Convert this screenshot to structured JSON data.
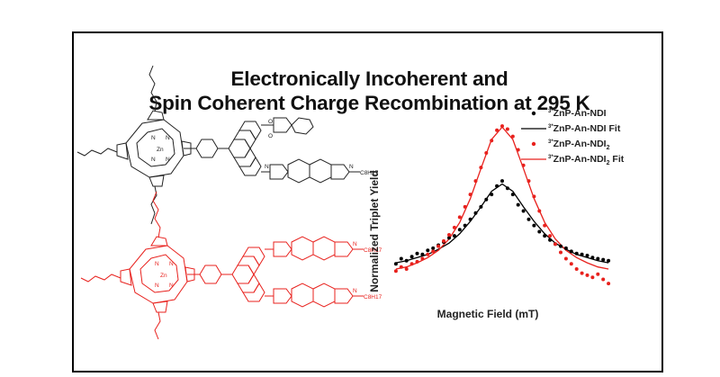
{
  "title": {
    "line1": "Electronically Incoherent and",
    "line2": "Spin Coherent Charge Recombination at 295 K"
  },
  "molecule_labels": {
    "n": "N",
    "zn": "Zn",
    "o": "O",
    "c8h17": "C8H17"
  },
  "colors": {
    "black_series": "#000000",
    "red_series": "#e8211d"
  },
  "chart_data": {
    "type": "scatter",
    "xlabel": "Magnetic Field (mT)",
    "ylabel": "Normalized Triplet Yield",
    "grid": false,
    "legend_position": "top-right",
    "series": [
      {
        "name": "3*ZnP-An-NDI",
        "label_sup": "3*",
        "label_main": "ZnP-An-NDI",
        "label_sub": "",
        "kind": "points",
        "color": "#000000",
        "x": [
          -1.0,
          -0.95,
          -0.9,
          -0.85,
          -0.8,
          -0.75,
          -0.7,
          -0.65,
          -0.6,
          -0.55,
          -0.5,
          -0.45,
          -0.4,
          -0.35,
          -0.3,
          -0.25,
          -0.2,
          -0.15,
          -0.1,
          -0.05,
          0.0,
          0.05,
          0.1,
          0.15,
          0.2,
          0.25,
          0.3,
          0.35,
          0.4,
          0.45,
          0.5,
          0.55,
          0.6,
          0.65,
          0.7,
          0.75,
          0.8,
          0.85,
          0.9,
          0.95,
          1.0
        ],
        "y": [
          0.15,
          0.2,
          0.18,
          0.22,
          0.25,
          0.24,
          0.28,
          0.3,
          0.33,
          0.36,
          0.4,
          0.42,
          0.48,
          0.52,
          0.58,
          0.64,
          0.7,
          0.77,
          0.82,
          0.9,
          0.95,
          0.88,
          0.82,
          0.72,
          0.66,
          0.58,
          0.52,
          0.46,
          0.42,
          0.38,
          0.34,
          0.32,
          0.3,
          0.27,
          0.25,
          0.24,
          0.23,
          0.21,
          0.2,
          0.19,
          0.18
        ]
      },
      {
        "name": "3*ZnP-An-NDI Fit",
        "label_sup": "3*",
        "label_main": "ZnP-An-NDI Fit",
        "label_sub": "",
        "kind": "line",
        "color": "#000000",
        "x": [
          -1.0,
          -0.9,
          -0.8,
          -0.7,
          -0.6,
          -0.5,
          -0.4,
          -0.3,
          -0.2,
          -0.1,
          0.0,
          0.1,
          0.2,
          0.3,
          0.4,
          0.5,
          0.6,
          0.7,
          0.8,
          0.9,
          1.0
        ],
        "y": [
          0.16,
          0.18,
          0.21,
          0.24,
          0.29,
          0.35,
          0.44,
          0.56,
          0.7,
          0.85,
          0.92,
          0.85,
          0.7,
          0.56,
          0.44,
          0.35,
          0.29,
          0.24,
          0.21,
          0.18,
          0.16
        ]
      },
      {
        "name": "3*ZnP-An-NDI2",
        "label_sup": "3*",
        "label_main": "ZnP-An-NDI",
        "label_sub": "2",
        "kind": "points",
        "color": "#e8211d",
        "x": [
          -1.0,
          -0.95,
          -0.9,
          -0.85,
          -0.8,
          -0.75,
          -0.7,
          -0.65,
          -0.6,
          -0.55,
          -0.5,
          -0.45,
          -0.4,
          -0.35,
          -0.3,
          -0.25,
          -0.2,
          -0.15,
          -0.1,
          -0.05,
          0.0,
          0.05,
          0.1,
          0.15,
          0.2,
          0.25,
          0.3,
          0.35,
          0.4,
          0.45,
          0.5,
          0.55,
          0.6,
          0.65,
          0.7,
          0.75,
          0.8,
          0.85,
          0.9,
          0.95,
          1.0
        ],
        "y": [
          0.08,
          0.12,
          0.1,
          0.15,
          0.17,
          0.2,
          0.24,
          0.27,
          0.32,
          0.37,
          0.43,
          0.5,
          0.6,
          0.7,
          0.82,
          0.95,
          1.08,
          1.22,
          1.34,
          1.44,
          1.48,
          1.45,
          1.38,
          1.25,
          1.1,
          0.95,
          0.8,
          0.66,
          0.52,
          0.42,
          0.34,
          0.26,
          0.2,
          0.15,
          0.1,
          0.06,
          0.04,
          0.02,
          0.05,
          0.0,
          -0.04
        ]
      },
      {
        "name": "3*ZnP-An-NDI2 Fit",
        "label_sup": "3*",
        "label_main": "ZnP-An-NDI",
        "label_sub": "2",
        "label_suffix": " Fit",
        "kind": "line",
        "color": "#e8211d",
        "x": [
          -1.0,
          -0.9,
          -0.8,
          -0.7,
          -0.6,
          -0.5,
          -0.4,
          -0.3,
          -0.2,
          -0.1,
          0.0,
          0.1,
          0.2,
          0.3,
          0.4,
          0.5,
          0.6,
          0.7,
          0.8,
          0.9,
          1.0
        ],
        "y": [
          0.1,
          0.12,
          0.16,
          0.21,
          0.28,
          0.39,
          0.55,
          0.78,
          1.07,
          1.35,
          1.47,
          1.35,
          1.07,
          0.78,
          0.55,
          0.39,
          0.28,
          0.21,
          0.16,
          0.12,
          0.1
        ]
      }
    ]
  }
}
